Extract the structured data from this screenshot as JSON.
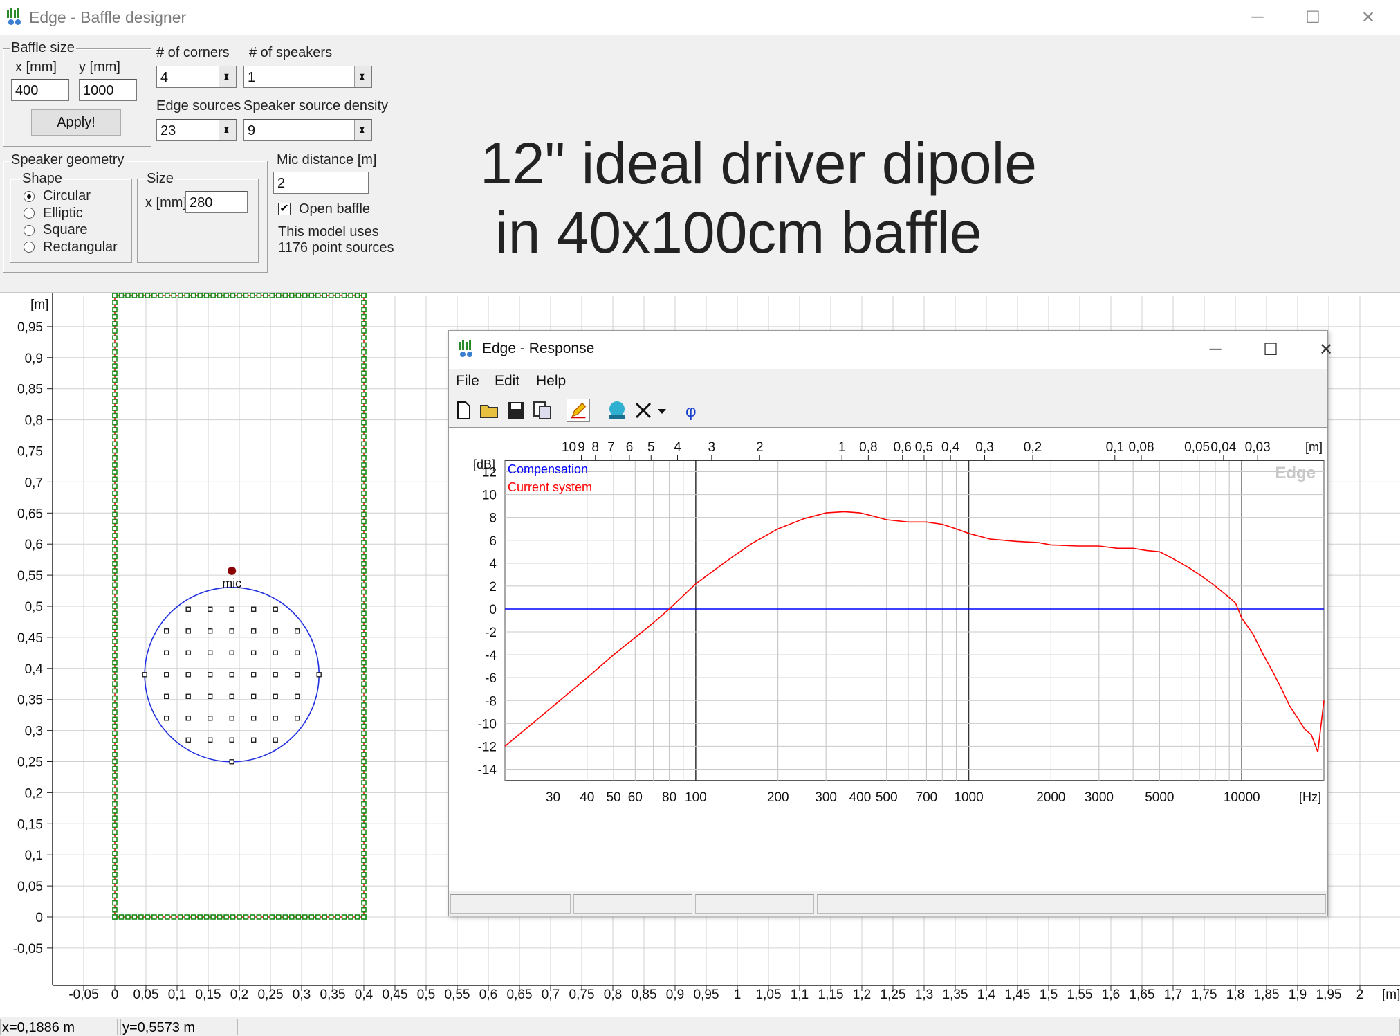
{
  "window": {
    "title": "Edge - Baffle designer"
  },
  "baffle_size": {
    "group": "Baffle size",
    "x_label": "x [mm]",
    "y_label": "y [mm]",
    "x_value": "400",
    "y_value": "1000",
    "apply": "Apply!"
  },
  "corners": {
    "label": "# of corners",
    "value": "4"
  },
  "speakers": {
    "label": "# of speakers",
    "value": "1"
  },
  "edge_sources": {
    "label": "Edge sources",
    "value": "23"
  },
  "density": {
    "label": "Speaker source density",
    "value": "9"
  },
  "geometry": {
    "group": "Speaker geometry",
    "shape_group": "Shape",
    "size_group": "Size",
    "shapes": [
      "Circular",
      "Elliptic",
      "Square",
      "Rectangular"
    ],
    "selected": "Circular",
    "size_label": "x [mm]",
    "size_value": "280"
  },
  "mic": {
    "label": "Mic distance [m]",
    "value": "2",
    "open_baffle": "Open baffle",
    "open_checked": true,
    "info1": "This model uses",
    "info2": "1176 point sources"
  },
  "headline": {
    "line1": "12\" ideal driver dipole",
    "line2": "in 40x100cm baffle"
  },
  "baffle_plot": {
    "unit_y": "[m]",
    "unit_x": "[m]",
    "mic_label": "mic",
    "y_ticks": [
      "0,95",
      "0,9",
      "0,85",
      "0,8",
      "0,75",
      "0,7",
      "0,65",
      "0,6",
      "0,55",
      "0,5",
      "0,45",
      "0,4",
      "0,35",
      "0,3",
      "0,25",
      "0,2",
      "0,15",
      "0,1",
      "0,05",
      "0",
      "-0,05"
    ],
    "x_ticks": [
      "-0,05",
      "0",
      "0,05",
      "0,1",
      "0,15",
      "0,2",
      "0,25",
      "0,3",
      "0,35",
      "0,4",
      "0,45",
      "0,5",
      "0,55",
      "0,6",
      "0,65",
      "0,7",
      "0,75",
      "0,8",
      "0,85",
      "0,9",
      "0,95",
      "1",
      "1,05",
      "1,1",
      "1,15",
      "1,2",
      "1,25",
      "1,3",
      "1,35",
      "1,4",
      "1,45",
      "1,5",
      "1,55",
      "1,6",
      "1,65",
      "1,7",
      "1,75",
      "1,8",
      "1,85",
      "1,9",
      "1,95",
      "2"
    ],
    "baffle_w": 0.4,
    "baffle_h": 1.0,
    "driver_cx": 0.188,
    "driver_cy": 0.39,
    "driver_r": 0.14,
    "mic_x": 0.188,
    "mic_y": 0.557
  },
  "status": {
    "x": "x=0,1886 m",
    "y": "y=0,5573 m"
  },
  "response": {
    "title": "Edge - Response",
    "menu": [
      "File",
      "Edit",
      "Help"
    ],
    "top_ticks": [
      "10",
      "9",
      "8",
      "7",
      "6",
      "5",
      "4",
      "3",
      "2",
      "1",
      "0,8",
      "0,6",
      "0,5",
      "0,4",
      "0,3",
      "0,2",
      "0,1",
      "0,08",
      "0,05",
      "0,04",
      "0,03"
    ],
    "top_unit": "[m]",
    "y_unit": "[dB]",
    "y_ticks": [
      "12",
      "10",
      "8",
      "6",
      "4",
      "2",
      "0",
      "-2",
      "-4",
      "-6",
      "-8",
      "-10",
      "-12",
      "-14"
    ],
    "x_ticks": [
      "30",
      "40",
      "50",
      "60",
      "80",
      "100",
      "200",
      "300",
      "400",
      "500",
      "700",
      "1000",
      "2000",
      "3000",
      "5000",
      "10000"
    ],
    "x_unit": "[Hz]",
    "watermark": "Edge",
    "legend": [
      {
        "name": "Compensation",
        "color": "#0000ff"
      },
      {
        "name": "Current system",
        "color": "#ff0000"
      }
    ]
  },
  "chart_data": {
    "type": "line",
    "title": "",
    "xlabel": "[Hz]",
    "ylabel": "[dB]",
    "xscale": "log",
    "xlim": [
      20,
      20000
    ],
    "ylim": [
      -15,
      13
    ],
    "series": [
      {
        "name": "Compensation",
        "color": "#0000ff",
        "x": [
          20,
          20000
        ],
        "y": [
          0,
          0
        ]
      },
      {
        "name": "Current system",
        "color": "#ff0000",
        "x": [
          20,
          30,
          40,
          50,
          60,
          70,
          80,
          100,
          130,
          160,
          200,
          250,
          300,
          350,
          400,
          450,
          500,
          600,
          700,
          800,
          900,
          1000,
          1200,
          1500,
          1800,
          2000,
          2500,
          3000,
          3500,
          4000,
          4500,
          5000,
          5500,
          6000,
          6500,
          7000,
          7500,
          8000,
          8500,
          9000,
          9500,
          10000,
          11000,
          12000,
          13000,
          14000,
          15000,
          16000,
          17000,
          18000,
          19000,
          20000
        ],
        "y": [
          -12,
          -8.5,
          -6,
          -4,
          -2.5,
          -1.2,
          0,
          2.2,
          4.2,
          5.7,
          7,
          7.9,
          8.4,
          8.5,
          8.4,
          8.1,
          7.8,
          7.6,
          7.6,
          7.4,
          7,
          6.6,
          6.1,
          5.9,
          5.8,
          5.6,
          5.5,
          5.5,
          5.3,
          5.3,
          5.1,
          5,
          4.5,
          4,
          3.5,
          3,
          2.5,
          2,
          1.5,
          1,
          0.5,
          -0.8,
          -2.2,
          -4,
          -5.5,
          -7,
          -8.5,
          -9.5,
          -10.5,
          -11,
          -12.5,
          -8
        ]
      }
    ]
  }
}
